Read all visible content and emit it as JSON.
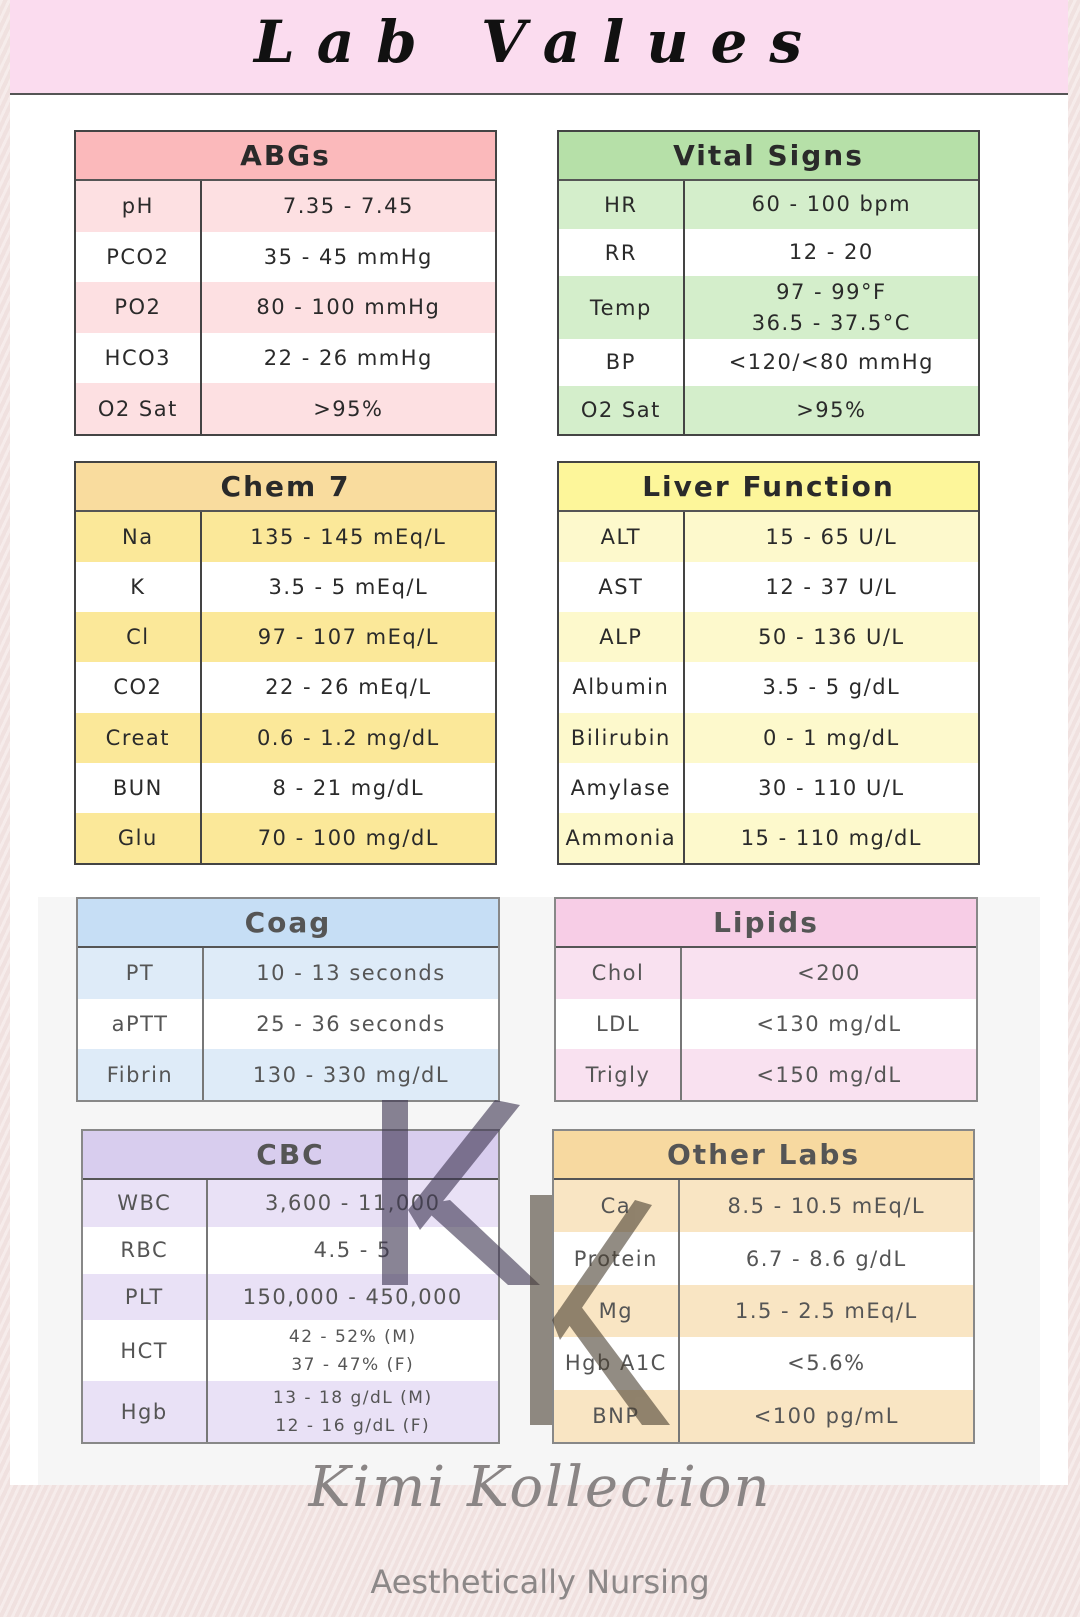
{
  "title": "Lab Values",
  "tables": [
    {
      "id": "abgs",
      "title": "ABGs",
      "header_color": "#fbb9bb",
      "row_color": "#fde0e2",
      "faded": false,
      "rows": [
        {
          "label": "pH",
          "value": [
            "7.35 - 7.45"
          ]
        },
        {
          "label": "PCO2",
          "value": [
            "35 - 45 mmHg"
          ]
        },
        {
          "label": "PO2",
          "value": [
            "80 - 100 mmHg"
          ]
        },
        {
          "label": "HCO3",
          "value": [
            "22 - 26 mmHg"
          ]
        },
        {
          "label": "O2 Sat",
          "value": [
            ">95%"
          ]
        }
      ]
    },
    {
      "id": "vital-signs",
      "title": "Vital Signs",
      "header_color": "#b6e0a8",
      "row_color": "#d4eecb",
      "faded": false,
      "rows": [
        {
          "label": "HR",
          "value": [
            "60 - 100 bpm"
          ]
        },
        {
          "label": "RR",
          "value": [
            "12 - 20"
          ]
        },
        {
          "label": "Temp",
          "value": [
            "97 - 99°F",
            "36.5 - 37.5°C"
          ]
        },
        {
          "label": "BP",
          "value": [
            "<120/<80 mmHg"
          ]
        },
        {
          "label": "O2 Sat",
          "value": [
            ">95%"
          ]
        }
      ]
    },
    {
      "id": "chem-7",
      "title": "Chem 7",
      "header_color": "#f9dc9e",
      "row_color": "#fbe899",
      "faded": false,
      "rows": [
        {
          "label": "Na",
          "value": [
            "135 - 145 mEq/L"
          ]
        },
        {
          "label": "K",
          "value": [
            "3.5 - 5 mEq/L"
          ]
        },
        {
          "label": "Cl",
          "value": [
            "97 - 107 mEq/L"
          ]
        },
        {
          "label": "CO2",
          "value": [
            "22 - 26 mEq/L"
          ]
        },
        {
          "label": "Creat",
          "value": [
            "0.6 - 1.2 mg/dL"
          ]
        },
        {
          "label": "BUN",
          "value": [
            "8 - 21 mg/dL"
          ]
        },
        {
          "label": "Glu",
          "value": [
            "70 - 100 mg/dL"
          ]
        }
      ]
    },
    {
      "id": "liver-function",
      "title": "Liver Function",
      "header_color": "#fdf69a",
      "row_color": "#fdf9cc",
      "faded": false,
      "rows": [
        {
          "label": "ALT",
          "value": [
            "15 - 65 U/L"
          ]
        },
        {
          "label": "AST",
          "value": [
            "12 - 37 U/L"
          ]
        },
        {
          "label": "ALP",
          "value": [
            "50 - 136 U/L"
          ]
        },
        {
          "label": "Albumin",
          "value": [
            "3.5 - 5 g/dL"
          ]
        },
        {
          "label": "Bilirubin",
          "value": [
            "0 - 1 mg/dL"
          ]
        },
        {
          "label": "Amylase",
          "value": [
            "30 - 110 U/L"
          ]
        },
        {
          "label": "Ammonia",
          "value": [
            "15 - 110 mg/dL"
          ]
        }
      ]
    },
    {
      "id": "coag",
      "title": "Coag",
      "header_color": "#c6def5",
      "row_color": "#deebf8",
      "faded": true,
      "rows": [
        {
          "label": "PT",
          "value": [
            "10 - 13 seconds"
          ]
        },
        {
          "label": "aPTT",
          "value": [
            "25 - 36 seconds"
          ]
        },
        {
          "label": "Fibrin",
          "value": [
            "130 - 330 mg/dL"
          ]
        }
      ]
    },
    {
      "id": "lipids",
      "title": "Lipids",
      "header_color": "#f7cde6",
      "row_color": "#f9e1f0",
      "faded": true,
      "rows": [
        {
          "label": "Chol",
          "value": [
            "<200"
          ]
        },
        {
          "label": "LDL",
          "value": [
            "<130 mg/dL"
          ]
        },
        {
          "label": "Trigly",
          "value": [
            "<150 mg/dL"
          ]
        }
      ]
    },
    {
      "id": "cbc",
      "title": "CBC",
      "header_color": "#d8cdee",
      "row_color": "#e9e1f6",
      "faded": true,
      "rows": [
        {
          "label": "WBC",
          "value": [
            "3,600 - 11,000"
          ]
        },
        {
          "label": "RBC",
          "value": [
            "4.5 - 5"
          ]
        },
        {
          "label": "PLT",
          "value": [
            "150,000 - 450,000"
          ]
        },
        {
          "label": "HCT",
          "value": [
            "42 - 52% (M)",
            "37 - 47% (F)"
          ]
        },
        {
          "label": "Hgb",
          "value": [
            "13 - 18 g/dL (M)",
            "12 - 16 g/dL (F)"
          ]
        }
      ]
    },
    {
      "id": "other-labs",
      "title": "Other Labs",
      "header_color": "#f7d9a0",
      "row_color": "#f9e5c3",
      "faded": true,
      "rows": [
        {
          "label": "Ca",
          "value": [
            "8.5 - 10.5 mEq/L"
          ]
        },
        {
          "label": "Protein",
          "value": [
            "6.7 - 8.6 g/dL"
          ]
        },
        {
          "label": "Mg",
          "value": [
            "1.5 - 2.5 mEq/L"
          ]
        },
        {
          "label": "Hgb A1C",
          "value": [
            "<5.6%"
          ]
        },
        {
          "label": "BNP",
          "value": [
            "<100 pg/mL"
          ]
        }
      ]
    }
  ],
  "watermark": "KK",
  "signature": "Kimi Kollection",
  "footer": "Aesthetically Nursing"
}
